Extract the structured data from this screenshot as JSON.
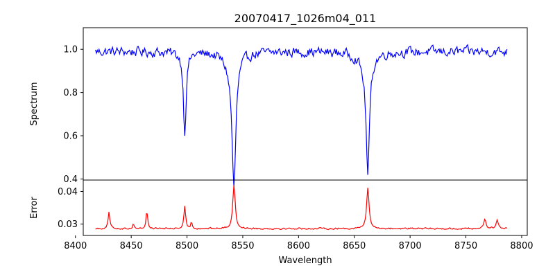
{
  "chart_data": {
    "type": "line",
    "title": "20070417_1026m04_011",
    "xlabel": "Wavelength",
    "xlim": [
      8407,
      8805
    ],
    "x_ticks": [
      8400,
      8450,
      8500,
      8550,
      8600,
      8650,
      8700,
      8750,
      8800
    ],
    "grid": false,
    "legend": "none",
    "panels": [
      {
        "ylabel": "Spectrum",
        "ylim": [
          0.395,
          1.1
        ],
        "y_ticks": [
          0.4,
          0.6,
          0.8,
          1.0
        ],
        "y_tick_labels": [
          "0.4",
          "0.6",
          "0.8",
          "1.0"
        ],
        "color": "#0000ff",
        "baseline": 0.99,
        "noise": 0.035,
        "features": [
          {
            "center": 8498.0,
            "depth": 0.37,
            "width": 1.5
          },
          {
            "center": 8542.1,
            "depth": 0.57,
            "width": 2.0
          },
          {
            "center": 8662.1,
            "depth": 0.52,
            "width": 1.8
          },
          {
            "center": 8540.0,
            "depth": 0.07,
            "width": 6.0
          },
          {
            "center": 8660.0,
            "depth": 0.06,
            "width": 6.0
          }
        ]
      },
      {
        "ylabel": "Error",
        "ylim": [
          0.0265,
          0.0435
        ],
        "y_ticks": [
          0.03,
          0.04
        ],
        "y_tick_labels": [
          "0.03",
          "0.04"
        ],
        "color": "#ff0000",
        "baseline": 0.0286,
        "noise": 0.0004,
        "features": [
          {
            "center": 8542.1,
            "depth": -0.0136,
            "width": 1.3
          },
          {
            "center": 8662.1,
            "depth": -0.0126,
            "width": 1.3
          },
          {
            "center": 8498.0,
            "depth": -0.0066,
            "width": 0.9
          },
          {
            "center": 8464.0,
            "depth": -0.0056,
            "width": 0.8
          },
          {
            "center": 8430.0,
            "depth": -0.005,
            "width": 0.9
          },
          {
            "center": 8767.0,
            "depth": -0.003,
            "width": 1.2
          },
          {
            "center": 8778.0,
            "depth": -0.0025,
            "width": 1.2
          },
          {
            "center": 8452.0,
            "depth": -0.0015,
            "width": 0.8
          },
          {
            "center": 8504.0,
            "depth": -0.002,
            "width": 0.8
          }
        ]
      }
    ],
    "x_start": 8418,
    "x_end": 8787,
    "step": 0.8
  }
}
